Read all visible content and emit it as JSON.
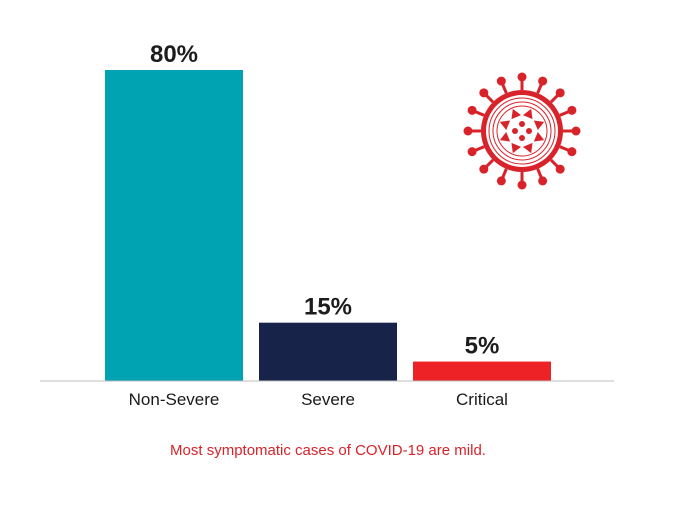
{
  "chart_data": {
    "type": "bar",
    "categories": [
      "Non-Severe",
      "Severe",
      "Critical"
    ],
    "values": [
      80,
      15,
      5
    ],
    "value_labels": [
      "80%",
      "15%",
      "5%"
    ],
    "colors": [
      "#00a3b2",
      "#182349",
      "#ec2227"
    ],
    "ylim": [
      0,
      80
    ],
    "grid": false,
    "legend": "none"
  },
  "caption": "Most symptomatic cases of COVID-19 are mild.",
  "icon": "virus-icon",
  "icon_color": "#d9232a"
}
